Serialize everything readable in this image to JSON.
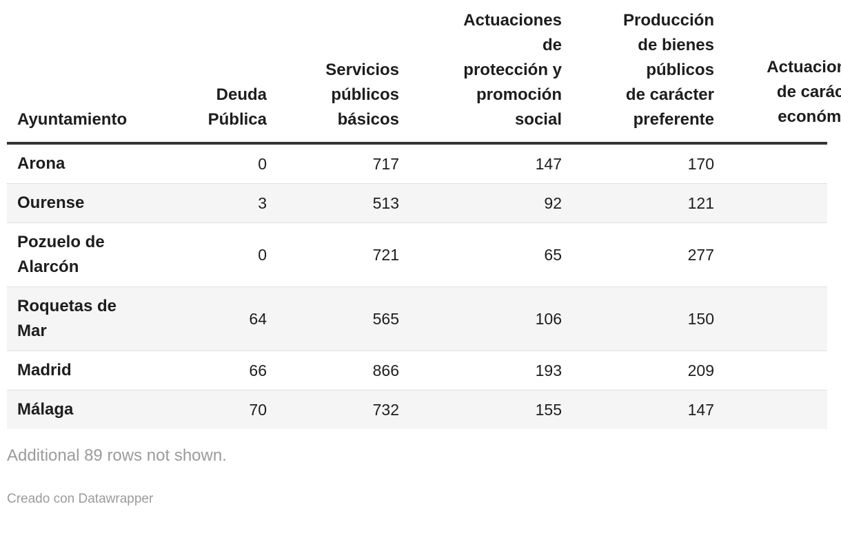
{
  "chart_data": {
    "type": "table",
    "title": "",
    "columns": [
      "Ayuntamiento",
      "Deuda Pública",
      "Servicios públicos básicos",
      "Actuaciones de protección y promoción social",
      "Producción de bienes públicos de carácter preferente",
      "Actuaciones de carácter económico"
    ],
    "column_display_lines": [
      [
        "Ayuntamiento"
      ],
      [
        "Deuda",
        "Pública"
      ],
      [
        "Servicios",
        "públicos",
        "básicos"
      ],
      [
        "Actuaciones",
        "de",
        "protección y",
        "promoción",
        "social"
      ],
      [
        "Producción",
        "de bienes",
        "públicos",
        "de carácter",
        "preferente"
      ],
      [
        "Actuaciones",
        "de carácter",
        "económico"
      ]
    ],
    "last_column_clipped_at_right_edge": true,
    "rows": [
      {
        "name": "Arona",
        "name_lines": [
          "Arona"
        ],
        "values": [
          "0",
          "717",
          "147",
          "170",
          ""
        ]
      },
      {
        "name": "Ourense",
        "name_lines": [
          "Ourense"
        ],
        "values": [
          "3",
          "513",
          "92",
          "121",
          ""
        ]
      },
      {
        "name": "Pozuelo de Alarcón",
        "name_lines": [
          "Pozuelo de",
          "Alarcón"
        ],
        "values": [
          "0",
          "721",
          "65",
          "277",
          ""
        ]
      },
      {
        "name": "Roquetas de Mar",
        "name_lines": [
          "Roquetas de",
          "Mar"
        ],
        "values": [
          "64",
          "565",
          "106",
          "150",
          ""
        ]
      },
      {
        "name": "Madrid",
        "name_lines": [
          "Madrid"
        ],
        "values": [
          "66",
          "866",
          "193",
          "209",
          ""
        ]
      },
      {
        "name": "Málaga",
        "name_lines": [
          "Málaga"
        ],
        "values": [
          "70",
          "732",
          "155",
          "147",
          ""
        ]
      }
    ],
    "note": "Additional 89 rows not shown.",
    "byline": "Creado con Datawrapper"
  },
  "colors": {
    "header_rule": "#333333",
    "row_divider": "#e0e0e0",
    "stripe": "#f5f5f5",
    "text": "#1d1d1d",
    "muted_text": "#9b9b9b"
  }
}
